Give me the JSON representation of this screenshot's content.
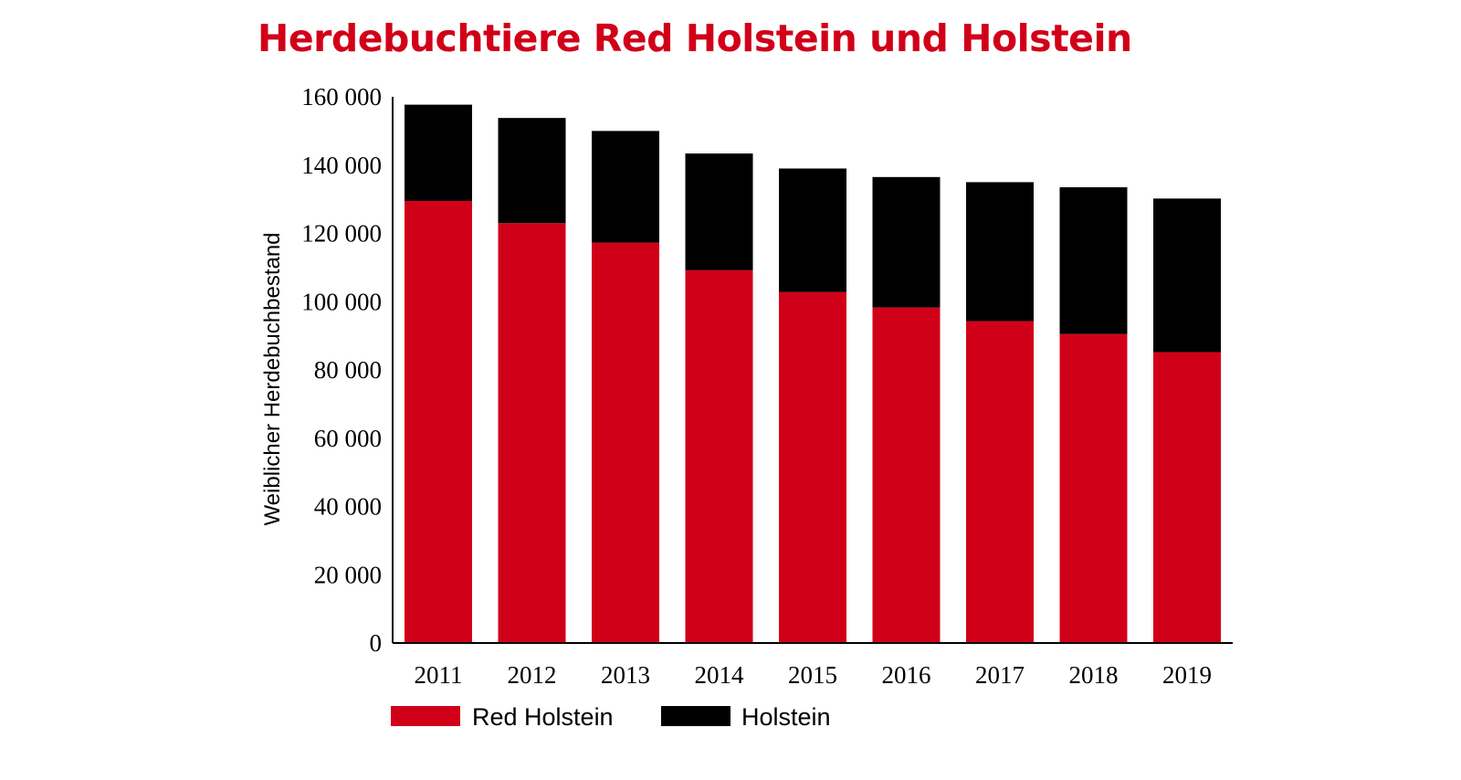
{
  "chart_data": {
    "type": "bar",
    "stacked": true,
    "title": "Herdebuchtiere Red Holstein und Holstein",
    "xlabel": "",
    "ylabel": "Weiblicher Herdebuchbestand",
    "categories": [
      "2011",
      "2012",
      "2013",
      "2014",
      "2015",
      "2016",
      "2017",
      "2018",
      "2019"
    ],
    "series": [
      {
        "name": "Red Holstein",
        "color": "#d10019",
        "values": [
          129500,
          123000,
          117300,
          109200,
          102800,
          98300,
          94300,
          90500,
          85200
        ]
      },
      {
        "name": "Holstein",
        "color": "#000000",
        "values": [
          28200,
          30800,
          32700,
          34200,
          36200,
          38200,
          40700,
          43000,
          45000
        ]
      }
    ],
    "ylim": [
      0,
      160000
    ],
    "yticks": [
      0,
      20000,
      40000,
      60000,
      80000,
      100000,
      120000,
      140000,
      160000
    ],
    "ytick_labels": [
      "0",
      "20 000",
      "40 000",
      "60 000",
      "80 000",
      "100 000",
      "120 000",
      "140 000",
      "160 000"
    ],
    "grid": false,
    "legend_position": "bottom-left",
    "title_color": "#d10019"
  }
}
